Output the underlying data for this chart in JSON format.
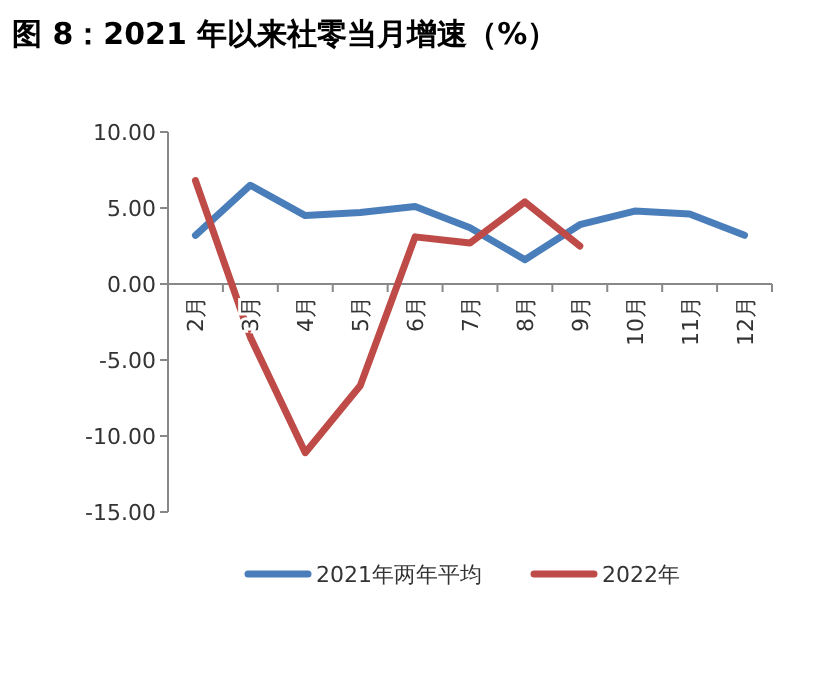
{
  "chart_data": {
    "type": "line",
    "title": "图 8：2021 年以来社零当月增速（%）",
    "categories": [
      "2月",
      "3月",
      "4月",
      "5月",
      "6月",
      "7月",
      "8月",
      "9月",
      "10月",
      "11月",
      "12月"
    ],
    "series": [
      {
        "name": "2021年两年平均",
        "color": "#4a7ebb",
        "values": [
          3.2,
          6.5,
          4.5,
          4.7,
          5.1,
          3.7,
          1.6,
          3.9,
          4.8,
          4.6,
          3.2
        ]
      },
      {
        "name": "2022年",
        "color": "#be4b48",
        "values": [
          6.8,
          -3.5,
          -11.1,
          -6.7,
          3.1,
          2.7,
          5.4,
          2.5,
          null,
          null,
          null
        ]
      }
    ],
    "ylim": [
      -15,
      10
    ],
    "yticks": [
      {
        "value": -15,
        "label": "-15.00"
      },
      {
        "value": -10,
        "label": "-10.00"
      },
      {
        "value": -5,
        "label": "-5.00"
      },
      {
        "value": 0,
        "label": "0.00"
      },
      {
        "value": 5,
        "label": "5.00"
      },
      {
        "value": 10,
        "label": "10.00"
      }
    ],
    "legend": "bottom",
    "marker": "none",
    "line_style": "solid"
  }
}
